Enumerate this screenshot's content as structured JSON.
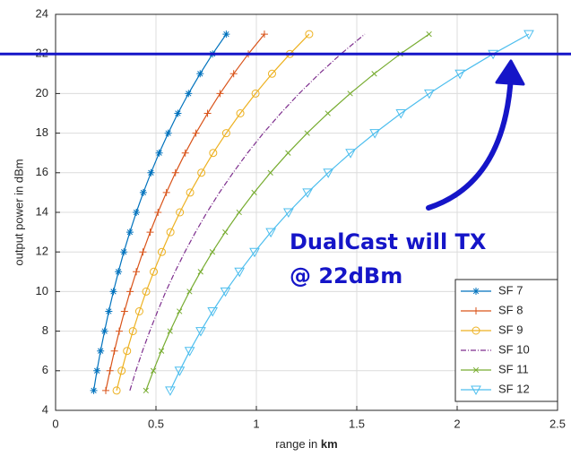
{
  "chart_data": {
    "type": "line",
    "xlabel": {
      "text": "range in",
      "unit": "km"
    },
    "ylabel": "output power in dBm",
    "xlim": [
      0,
      2.5
    ],
    "xticks": [
      0,
      0.5,
      1,
      1.5,
      2,
      2.5
    ],
    "ylim": [
      4,
      24
    ],
    "yticks": [
      4,
      6,
      8,
      10,
      12,
      14,
      16,
      18,
      20,
      22,
      24
    ],
    "grid": true,
    "legend": "lower right",
    "hline": 22,
    "annotation": [
      "DualCast will TX",
      "@ 22dBm"
    ],
    "series": [
      {
        "name": "SF 7",
        "color": "#0072bd",
        "marker": "asterisk",
        "x": [
          0.19,
          0.206,
          0.224,
          0.244,
          0.265,
          0.288,
          0.313,
          0.34,
          0.37,
          0.402,
          0.437,
          0.475,
          0.516,
          0.561,
          0.609,
          0.662,
          0.72,
          0.782,
          0.85
        ],
        "values": [
          5,
          6,
          7,
          8,
          9,
          10,
          11,
          12,
          13,
          14,
          15,
          16,
          17,
          18,
          19,
          20,
          21,
          22,
          23
        ]
      },
      {
        "name": "SF 8",
        "color": "#d95319",
        "marker": "plus",
        "x": [
          0.25,
          0.271,
          0.293,
          0.317,
          0.343,
          0.371,
          0.402,
          0.435,
          0.471,
          0.51,
          0.552,
          0.597,
          0.646,
          0.699,
          0.757,
          0.819,
          0.887,
          0.96,
          1.04
        ],
        "values": [
          5,
          6,
          7,
          8,
          9,
          10,
          11,
          12,
          13,
          14,
          15,
          16,
          17,
          18,
          19,
          20,
          21,
          22,
          23
        ]
      },
      {
        "name": "SF 9",
        "color": "#edb120",
        "marker": "circle",
        "x": [
          0.304,
          0.329,
          0.356,
          0.385,
          0.417,
          0.451,
          0.489,
          0.529,
          0.572,
          0.619,
          0.67,
          0.726,
          0.785,
          0.85,
          0.92,
          0.996,
          1.078,
          1.167,
          1.263
        ],
        "values": [
          5,
          6,
          7,
          8,
          9,
          10,
          11,
          12,
          13,
          14,
          15,
          16,
          17,
          18,
          19,
          20,
          21,
          22,
          23
        ]
      },
      {
        "name": "SF 10",
        "color": "#7e2f8e",
        "marker": "none",
        "x": [
          0.37,
          0.4,
          0.433,
          0.469,
          0.508,
          0.549,
          0.595,
          0.644,
          0.697,
          0.754,
          0.816,
          0.884,
          0.956,
          1.035,
          1.121,
          1.213,
          1.313,
          1.421,
          1.54
        ],
        "values": [
          5,
          6,
          7,
          8,
          9,
          10,
          11,
          12,
          13,
          14,
          15,
          16,
          17,
          18,
          19,
          20,
          21,
          22,
          23
        ]
      },
      {
        "name": "SF 11",
        "color": "#77ac30",
        "marker": "x",
        "x": [
          0.45,
          0.487,
          0.527,
          0.57,
          0.617,
          0.667,
          0.722,
          0.781,
          0.845,
          0.914,
          0.989,
          1.07,
          1.158,
          1.253,
          1.356,
          1.467,
          1.587,
          1.717,
          1.86
        ],
        "values": [
          5,
          6,
          7,
          8,
          9,
          10,
          11,
          12,
          13,
          14,
          15,
          16,
          17,
          18,
          19,
          20,
          21,
          22,
          23
        ]
      },
      {
        "name": "SF 12",
        "color": "#4dbeee",
        "marker": "triangle-down",
        "x": [
          0.571,
          0.618,
          0.668,
          0.723,
          0.782,
          0.846,
          0.916,
          0.991,
          1.072,
          1.16,
          1.255,
          1.358,
          1.469,
          1.59,
          1.72,
          1.861,
          2.014,
          2.179,
          2.357
        ],
        "values": [
          5,
          6,
          7,
          8,
          9,
          10,
          11,
          12,
          13,
          14,
          15,
          16,
          17,
          18,
          19,
          20,
          21,
          22,
          23
        ]
      }
    ]
  }
}
